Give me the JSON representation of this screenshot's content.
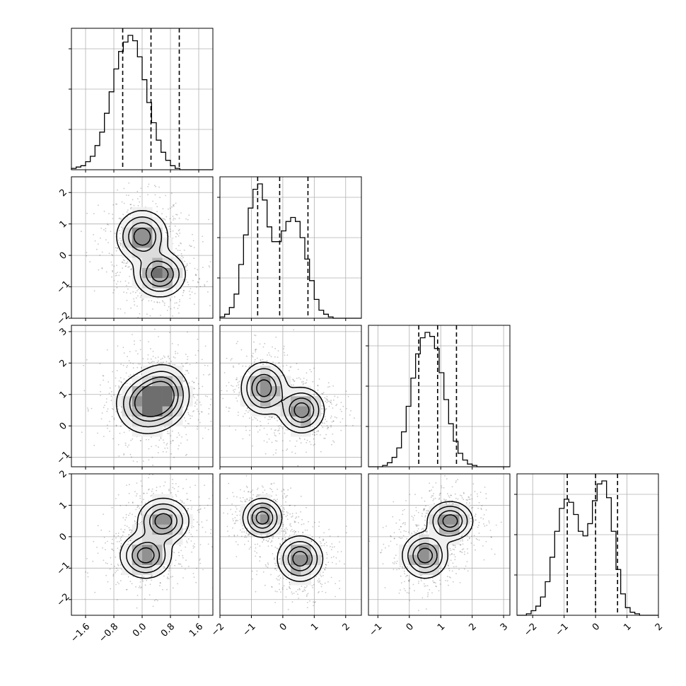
{
  "chart_data": {
    "type": "corner",
    "n_params": 4,
    "grid": true,
    "ranges": [
      [
        -2.0,
        2.0
      ],
      [
        -2.0,
        2.5
      ],
      [
        -1.3,
        3.2
      ],
      [
        -2.5,
        2.0
      ]
    ],
    "tick_values": [
      [
        -1.6,
        -0.8,
        0.0,
        0.8,
        1.6
      ],
      [
        -2,
        -1,
        0,
        1,
        2
      ],
      [
        -1,
        0,
        1,
        2,
        3
      ],
      [
        -2,
        -1,
        0,
        1,
        2
      ]
    ],
    "tick_labels": [
      [
        "−1.6",
        "−0.8",
        "0.0",
        "0.8",
        "1.6"
      ],
      [
        "−2",
        "−1",
        "0",
        "1",
        "2"
      ],
      [
        "−1",
        "0",
        "1",
        "2",
        "3"
      ],
      [
        "−2",
        "−1",
        "0",
        "1",
        "2"
      ]
    ],
    "quantiles": [
      [
        -0.55,
        0.25,
        1.05
      ],
      [
        -0.8,
        -0.1,
        0.8
      ],
      [
        0.3,
        0.9,
        1.5
      ],
      [
        -0.9,
        0.0,
        0.7
      ]
    ],
    "histograms": [
      {
        "bins": 30,
        "counts": [
          1,
          2,
          3,
          6,
          10,
          18,
          28,
          42,
          58,
          75,
          88,
          95,
          100,
          96,
          84,
          67,
          50,
          35,
          22,
          13,
          7,
          3,
          1,
          0,
          0,
          0,
          0,
          0,
          0,
          0
        ]
      },
      {
        "bins": 30,
        "counts": [
          1,
          3,
          8,
          18,
          40,
          62,
          82,
          96,
          100,
          88,
          68,
          57,
          57,
          65,
          72,
          75,
          72,
          60,
          44,
          28,
          14,
          6,
          3,
          1,
          0,
          0,
          0,
          0,
          0,
          0
        ]
      },
      {
        "bins": 30,
        "counts": [
          0,
          0,
          0,
          1,
          3,
          7,
          14,
          26,
          45,
          66,
          84,
          96,
          100,
          97,
          88,
          70,
          50,
          32,
          19,
          10,
          5,
          2,
          1,
          0,
          0,
          0,
          0,
          0,
          0,
          0
        ]
      },
      {
        "bins": 30,
        "counts": [
          0,
          0,
          1,
          3,
          6,
          12,
          22,
          38,
          55,
          70,
          76,
          74,
          66,
          55,
          52,
          60,
          75,
          86,
          88,
          77,
          55,
          30,
          14,
          5,
          2,
          1,
          0,
          0,
          0,
          0
        ]
      }
    ],
    "blobs": {
      "1-0": [
        {
          "mx": 0.0,
          "my": 0.6,
          "sx": 0.35,
          "sy": 0.4
        },
        {
          "mx": 0.5,
          "my": -0.6,
          "sx": 0.35,
          "sy": 0.35
        }
      ],
      "2-0": [
        {
          "mx": 0.1,
          "my": 0.7,
          "sx": 0.4,
          "sy": 0.45
        },
        {
          "mx": 0.6,
          "my": 1.0,
          "sx": 0.35,
          "sy": 0.45
        }
      ],
      "3-0": [
        {
          "mx": 0.1,
          "my": -0.6,
          "sx": 0.35,
          "sy": 0.35
        },
        {
          "mx": 0.6,
          "my": 0.5,
          "sx": 0.35,
          "sy": 0.35
        }
      ],
      "2-1": [
        {
          "mx": -0.6,
          "my": 1.2,
          "sx": 0.35,
          "sy": 0.4
        },
        {
          "mx": 0.6,
          "my": 0.5,
          "sx": 0.35,
          "sy": 0.35
        }
      ],
      "3-1": [
        {
          "mx": -0.65,
          "my": 0.6,
          "sx": 0.3,
          "sy": 0.3
        },
        {
          "mx": 0.55,
          "my": -0.7,
          "sx": 0.35,
          "sy": 0.35
        }
      ],
      "3-2": [
        {
          "mx": 0.5,
          "my": -0.6,
          "sx": 0.35,
          "sy": 0.35
        },
        {
          "mx": 1.3,
          "my": 0.5,
          "sx": 0.35,
          "sy": 0.3
        }
      ]
    }
  }
}
